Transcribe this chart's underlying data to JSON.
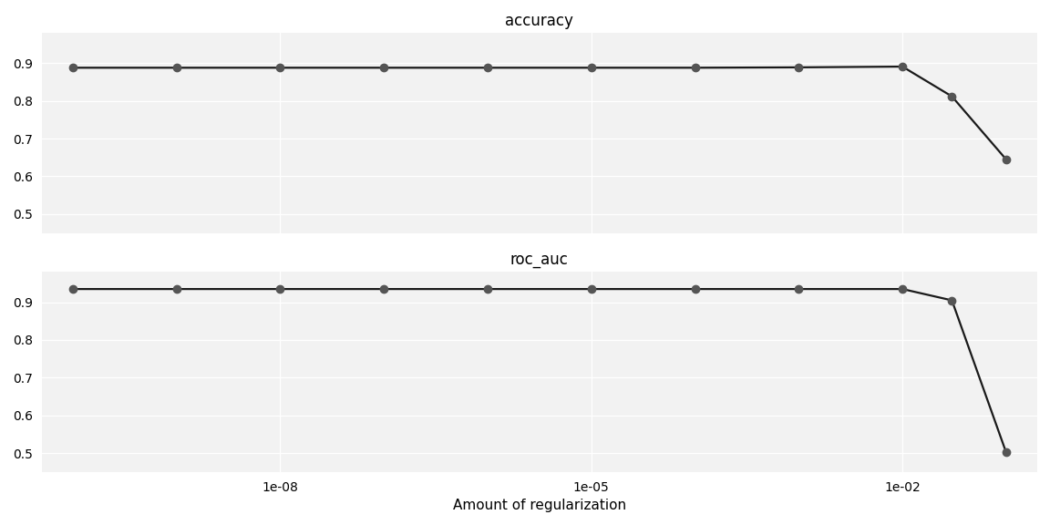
{
  "x_values": [
    1e-10,
    1e-09,
    1e-08,
    1e-07,
    1e-06,
    1e-05,
    0.0001,
    0.001,
    0.01,
    0.03,
    0.1
  ],
  "accuracy_values": [
    0.888,
    0.888,
    0.888,
    0.888,
    0.888,
    0.888,
    0.888,
    0.889,
    0.891,
    0.812,
    0.645
  ],
  "roc_auc_values": [
    0.935,
    0.935,
    0.935,
    0.935,
    0.935,
    0.935,
    0.935,
    0.935,
    0.935,
    0.905,
    0.502
  ],
  "accuracy_ylim": [
    0.45,
    0.98
  ],
  "roc_auc_ylim": [
    0.45,
    0.98
  ],
  "accuracy_yticks": [
    0.5,
    0.6,
    0.7,
    0.8,
    0.9
  ],
  "roc_auc_yticks": [
    0.5,
    0.6,
    0.7,
    0.8,
    0.9
  ],
  "xlabel": "Amount of regularization",
  "title_accuracy": "accuracy",
  "title_roc_auc": "roc_auc",
  "line_color": "#1a1a1a",
  "marker_color": "#555555",
  "marker_size": 6,
  "line_width": 1.6,
  "bg_color": "#f2f2f2",
  "grid_color": "#ffffff",
  "fig_color": "#ffffff",
  "title_fontsize": 12,
  "label_fontsize": 11,
  "tick_fontsize": 10,
  "xtick_labels": [
    "1e-08",
    "1e-05",
    "1e-02"
  ],
  "xtick_positions": [
    1e-08,
    1e-05,
    0.01
  ],
  "xlim_left": 5e-11,
  "xlim_right": 0.2
}
